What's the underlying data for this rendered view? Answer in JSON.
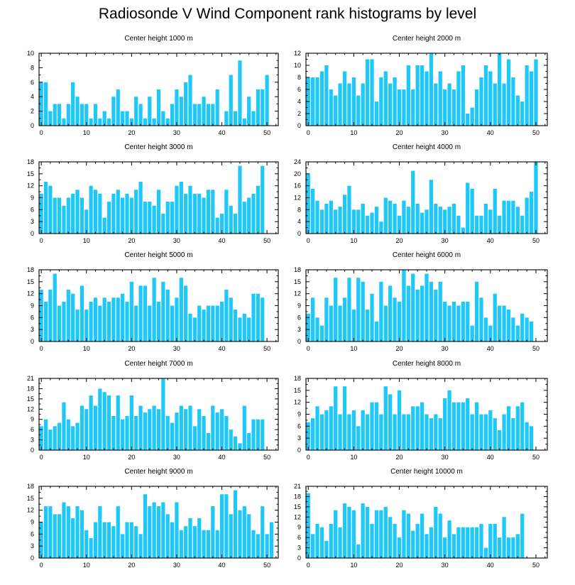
{
  "title": "Radiosonde V Wind Component rank histograms by level",
  "bar_color": "#1ec8f8",
  "chart_data": [
    {
      "type": "bar",
      "title": "Center height 1000 m",
      "ylim": [
        0,
        10
      ],
      "yticks": [
        0,
        2,
        4,
        6,
        8,
        10
      ],
      "xlim": [
        -0.5,
        52.5
      ],
      "xticks": [
        0,
        10,
        20,
        30,
        40,
        50
      ],
      "values": [
        6,
        6,
        2,
        3,
        3,
        1,
        3,
        6,
        4,
        3,
        3,
        1,
        3,
        1,
        2,
        1,
        4,
        5,
        2,
        2,
        1,
        4,
        3,
        1,
        4,
        1,
        5,
        2,
        1,
        3,
        5,
        4,
        6,
        7,
        3,
        3,
        4,
        3,
        3,
        5,
        0,
        2,
        7,
        2,
        9,
        1,
        4,
        2,
        5,
        5,
        7,
        0
      ]
    },
    {
      "type": "bar",
      "title": "Center height 2000 m",
      "ylim": [
        0,
        12
      ],
      "yticks": [
        0,
        2,
        4,
        6,
        8,
        10,
        12
      ],
      "xlim": [
        -0.5,
        52.5
      ],
      "xticks": [
        0,
        10,
        20,
        30,
        40,
        50
      ],
      "values": [
        8,
        8,
        8,
        9,
        10,
        6,
        5,
        7,
        9,
        7,
        8,
        5,
        7,
        11,
        11,
        4,
        8,
        9,
        7,
        8,
        6,
        6,
        10,
        6,
        10,
        10,
        9,
        12,
        7,
        9,
        6,
        7,
        6,
        9,
        10,
        2,
        3,
        6,
        8,
        10,
        9,
        7,
        12,
        7,
        11,
        8,
        5,
        4,
        10,
        9,
        11,
        0
      ]
    },
    {
      "type": "bar",
      "title": "Center height 3000 m",
      "ylim": [
        0,
        18
      ],
      "yticks": [
        0,
        3,
        6,
        9,
        12,
        15,
        18
      ],
      "xlim": [
        -0.5,
        52.5
      ],
      "xticks": [
        0,
        10,
        20,
        30,
        40,
        50
      ],
      "values": [
        10,
        13,
        12,
        9,
        9,
        7,
        9,
        10,
        11,
        9,
        6,
        12,
        11,
        10,
        4,
        8,
        10,
        11,
        9,
        10,
        9,
        11,
        13,
        8,
        8,
        7,
        11,
        5,
        8,
        8,
        12,
        13,
        10,
        12,
        10,
        10,
        9,
        11,
        11,
        4,
        5,
        11,
        7,
        5,
        17,
        8,
        9,
        10,
        12,
        17,
        0,
        0
      ]
    },
    {
      "type": "bar",
      "title": "Center height 4000 m",
      "ylim": [
        0,
        24
      ],
      "yticks": [
        0,
        4,
        8,
        12,
        16,
        20,
        24
      ],
      "xlim": [
        -0.5,
        52.5
      ],
      "xticks": [
        0,
        10,
        20,
        30,
        40,
        50
      ],
      "values": [
        20,
        15,
        11,
        8,
        10,
        11,
        8,
        9,
        13,
        16,
        8,
        8,
        10,
        6,
        7,
        9,
        4,
        12,
        11,
        10,
        6,
        11,
        9,
        21,
        10,
        7,
        8,
        18,
        10,
        9,
        8,
        9,
        10,
        6,
        2,
        17,
        15,
        6,
        6,
        10,
        8,
        15,
        6,
        11,
        11,
        11,
        9,
        6,
        12,
        14,
        24,
        0
      ]
    },
    {
      "type": "bar",
      "title": "Center height 5000 m",
      "ylim": [
        0,
        18
      ],
      "yticks": [
        0,
        3,
        6,
        9,
        12,
        15,
        18
      ],
      "xlim": [
        -0.5,
        52.5
      ],
      "xticks": [
        0,
        10,
        20,
        30,
        40,
        50
      ],
      "values": [
        13,
        10,
        13,
        17,
        9,
        10,
        13,
        12,
        8,
        14,
        8,
        10,
        11,
        9,
        11,
        10,
        11,
        11,
        12,
        10,
        15,
        9,
        14,
        14,
        9,
        16,
        10,
        15,
        13,
        9,
        11,
        16,
        14,
        7,
        6,
        9,
        8,
        9,
        9,
        9,
        10,
        13,
        11,
        8,
        6,
        7,
        6,
        12,
        12,
        11,
        0,
        0
      ]
    },
    {
      "type": "bar",
      "title": "Center height 6000 m",
      "ylim": [
        0,
        18
      ],
      "yticks": [
        0,
        3,
        6,
        9,
        12,
        15,
        18
      ],
      "xlim": [
        -0.5,
        52.5
      ],
      "xticks": [
        0,
        10,
        20,
        30,
        40,
        50
      ],
      "values": [
        7,
        11,
        6,
        4,
        11,
        9,
        16,
        9,
        11,
        16,
        8,
        16,
        15,
        8,
        12,
        5,
        15,
        9,
        14,
        11,
        10,
        18,
        14,
        17,
        13,
        14,
        17,
        15,
        13,
        15,
        10,
        9,
        10,
        9,
        10,
        10,
        4,
        15,
        11,
        6,
        4,
        12,
        9,
        9,
        8,
        6,
        4,
        7,
        6,
        5,
        0,
        0
      ]
    },
    {
      "type": "bar",
      "title": "Center height 7000 m",
      "ylim": [
        0,
        21
      ],
      "yticks": [
        0,
        3,
        6,
        9,
        12,
        15,
        18,
        21
      ],
      "xlim": [
        -0.5,
        52.5
      ],
      "xticks": [
        0,
        10,
        20,
        30,
        40,
        50
      ],
      "values": [
        7,
        9,
        6,
        7,
        8,
        14,
        9,
        7,
        8,
        13,
        12,
        16,
        13,
        18,
        17,
        16,
        10,
        16,
        9,
        10,
        16,
        10,
        13,
        11,
        12,
        13,
        12,
        21,
        10,
        8,
        11,
        13,
        12,
        13,
        7,
        12,
        10,
        5,
        13,
        11,
        12,
        10,
        6,
        4,
        2,
        13,
        5,
        9,
        9,
        9,
        0,
        0
      ]
    },
    {
      "type": "bar",
      "title": "Center height 8000 m",
      "ylim": [
        0,
        18
      ],
      "yticks": [
        0,
        3,
        6,
        9,
        12,
        15,
        18
      ],
      "xlim": [
        -0.5,
        52.5
      ],
      "xticks": [
        0,
        10,
        20,
        30,
        40,
        50
      ],
      "values": [
        7,
        8,
        11,
        9,
        10,
        11,
        16,
        9,
        16,
        9,
        10,
        6,
        10,
        9,
        12,
        12,
        9,
        16,
        14,
        9,
        15,
        9,
        9,
        11,
        11,
        12,
        9,
        8,
        9,
        8,
        13,
        15,
        12,
        12,
        12,
        13,
        9,
        12,
        9,
        9,
        10,
        8,
        5,
        9,
        11,
        8,
        11,
        12,
        7,
        6,
        0,
        0
      ]
    },
    {
      "type": "bar",
      "title": "Center height 9000 m",
      "ylim": [
        0,
        18
      ],
      "yticks": [
        0,
        3,
        6,
        9,
        12,
        15,
        18
      ],
      "xlim": [
        -0.5,
        52.5
      ],
      "xticks": [
        0,
        10,
        20,
        30,
        40,
        50
      ],
      "values": [
        9,
        13,
        13,
        11,
        11,
        14,
        13,
        10,
        13,
        12,
        7,
        5,
        9,
        13,
        9,
        9,
        8,
        13,
        6,
        9,
        9,
        8,
        6,
        16,
        13,
        14,
        13,
        14,
        11,
        9,
        14,
        7,
        8,
        10,
        8,
        10,
        7,
        7,
        13,
        7,
        16,
        16,
        11,
        17,
        12,
        13,
        11,
        7,
        6,
        13,
        6,
        9
      ]
    },
    {
      "type": "bar",
      "title": "Center height 10000 m",
      "ylim": [
        0,
        21
      ],
      "yticks": [
        0,
        3,
        6,
        9,
        12,
        15,
        18,
        21
      ],
      "xlim": [
        -0.5,
        52.5
      ],
      "xticks": [
        0,
        10,
        20,
        30,
        40,
        50
      ],
      "values": [
        19,
        7,
        10,
        9,
        5,
        10,
        14,
        9,
        16,
        15,
        14,
        4,
        16,
        15,
        10,
        14,
        14,
        15,
        12,
        10,
        6,
        14,
        13,
        8,
        10,
        13,
        7,
        9,
        15,
        13,
        6,
        11,
        7,
        9,
        9,
        9,
        9,
        9,
        10,
        3,
        10,
        10,
        6,
        12,
        6,
        6,
        7,
        13,
        0,
        0,
        0,
        0
      ]
    }
  ]
}
